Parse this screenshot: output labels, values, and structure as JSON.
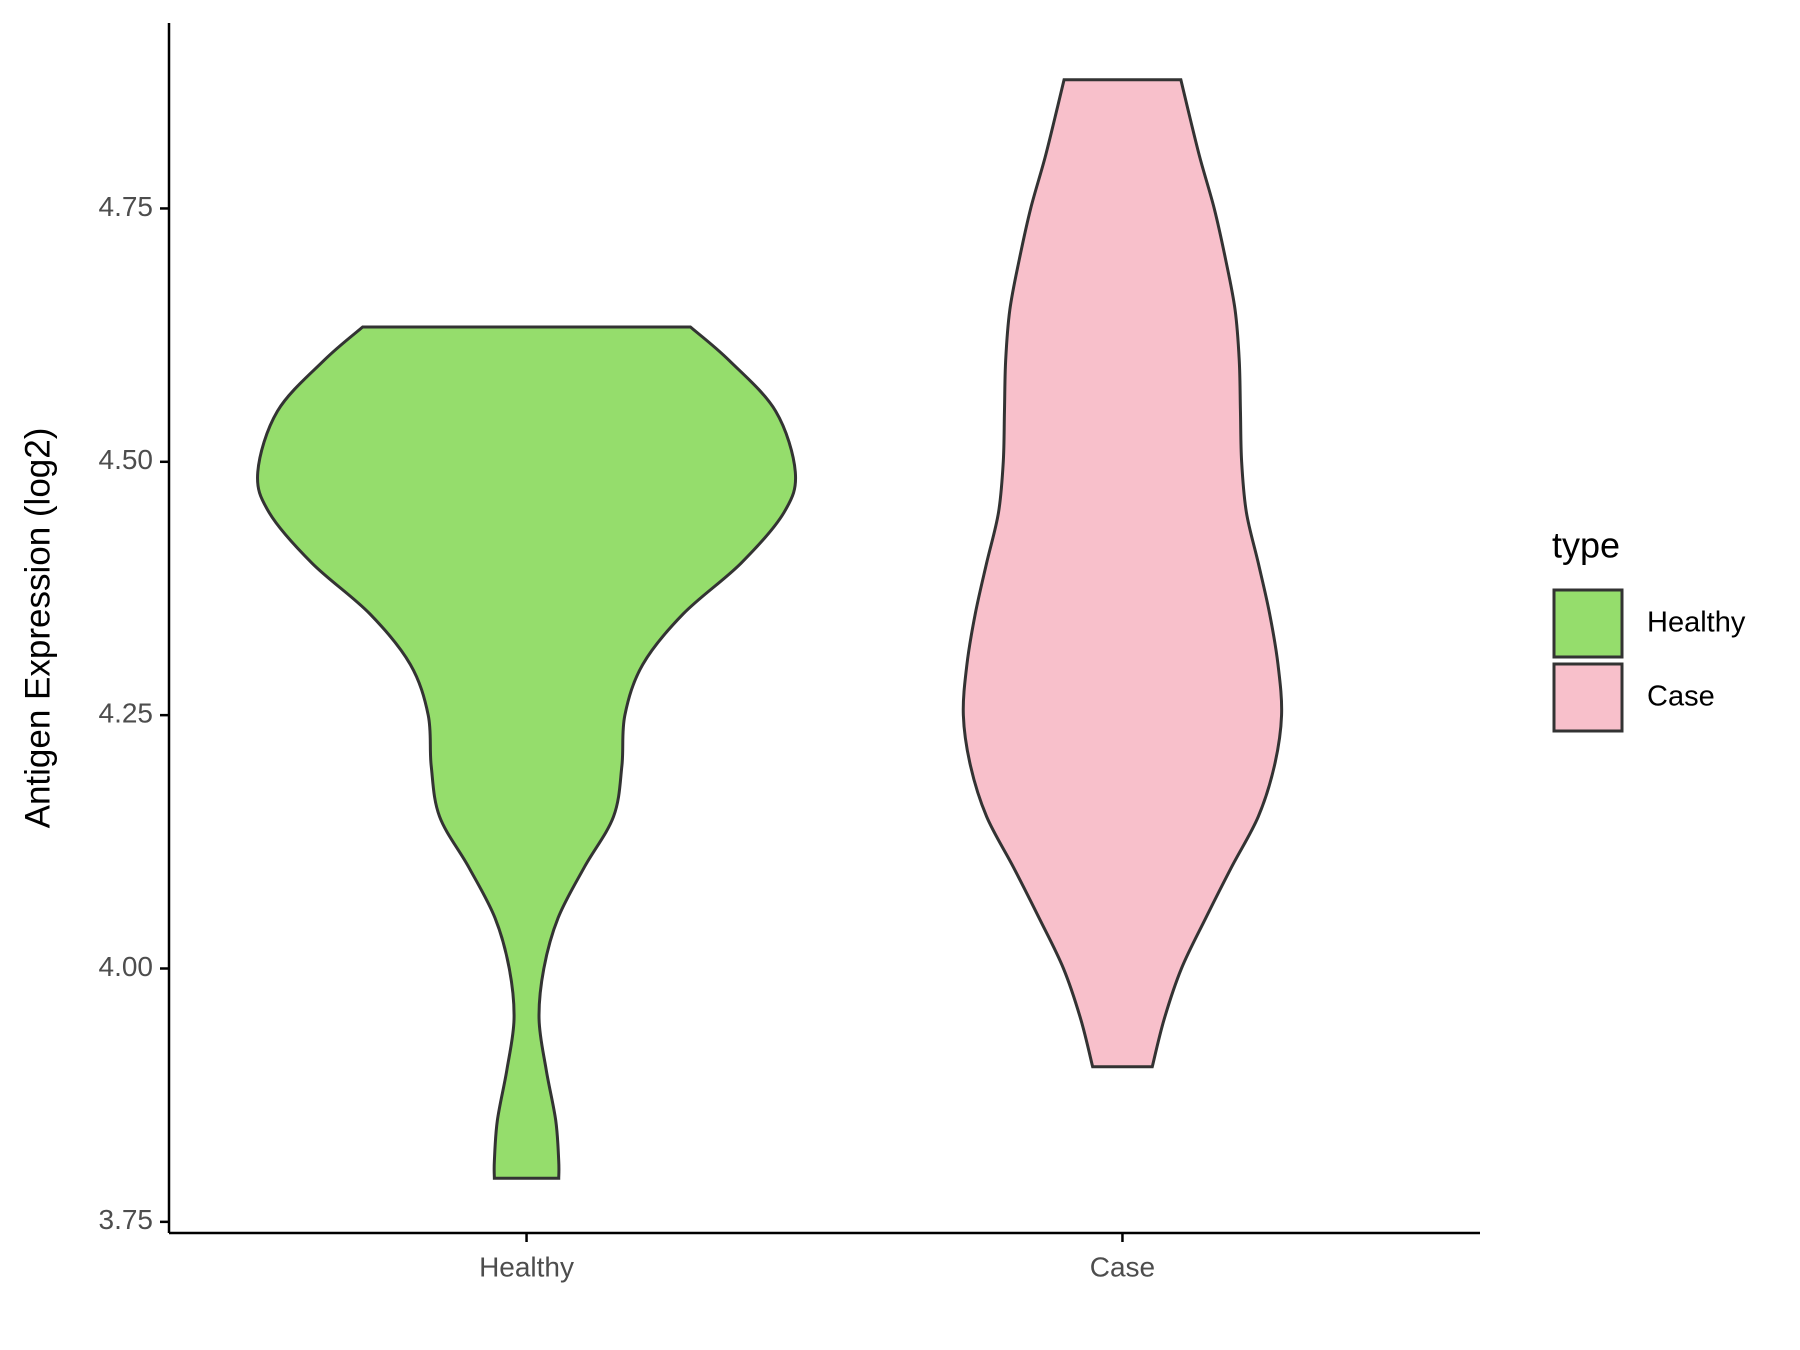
{
  "chart_data": {
    "type": "violin",
    "y_label": "Antigen Expression (log2)",
    "categories": [
      "Healthy",
      "Case"
    ],
    "legend_title": "type",
    "legend": "right",
    "ylim": [
      3.739,
      4.933
    ],
    "yticks": [
      3.75,
      {
        "value": 4,
        "label": "4.00"
      },
      4.25,
      {
        "value": 4.5,
        "label": "4.50"
      },
      4.75
    ],
    "series": [
      {
        "name": "Healthy",
        "color": "#95dd6c",
        "y": [
          4.633,
          4.6,
          4.55,
          4.49,
          4.45,
          4.4,
          4.35,
          4.3,
          4.25,
          4.2,
          4.15,
          4.1,
          4.05,
          4.0,
          3.95,
          3.9,
          3.85,
          3.81,
          3.793
        ],
        "width": [
          0.275,
          0.34,
          0.418,
          0.451,
          0.432,
          0.36,
          0.263,
          0.195,
          0.165,
          0.16,
          0.146,
          0.097,
          0.053,
          0.029,
          0.021,
          0.033,
          0.049,
          0.054,
          0.054
        ]
      },
      {
        "name": "Case",
        "color": "#f8c0cb",
        "y": [
          4.877,
          4.85,
          4.8,
          4.75,
          4.7,
          4.65,
          4.6,
          4.55,
          4.5,
          4.45,
          4.4,
          4.35,
          4.3,
          4.25,
          4.2,
          4.15,
          4.1,
          4.05,
          4.0,
          3.95,
          3.903
        ],
        "width": [
          0.098,
          0.109,
          0.13,
          0.154,
          0.173,
          0.189,
          0.196,
          0.198,
          0.2,
          0.208,
          0.228,
          0.247,
          0.261,
          0.267,
          0.255,
          0.228,
          0.183,
          0.14,
          0.099,
          0.07,
          0.05
        ]
      }
    ]
  }
}
